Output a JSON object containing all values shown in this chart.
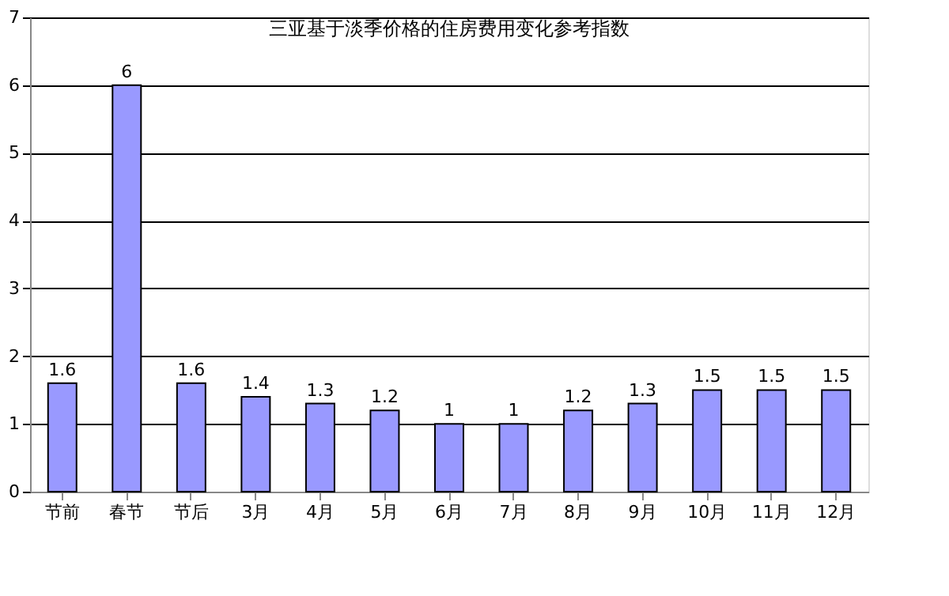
{
  "chart_data": {
    "type": "bar",
    "title": "三亚基于淡季价格的住房费用变化参考指数",
    "categories": [
      "节前",
      "春节",
      "节后",
      "3月",
      "4月",
      "5月",
      "6月",
      "7月",
      "8月",
      "9月",
      "10月",
      "11月",
      "12月"
    ],
    "values": [
      1.6,
      6,
      1.6,
      1.4,
      1.3,
      1.2,
      1,
      1,
      1.2,
      1.3,
      1.5,
      1.5,
      1.5
    ],
    "color": "#9999ff",
    "ylim": [
      0,
      7
    ],
    "yticks": [
      0,
      1,
      2,
      3,
      4,
      5,
      6,
      7
    ],
    "grid": "y",
    "data_labels": true
  }
}
